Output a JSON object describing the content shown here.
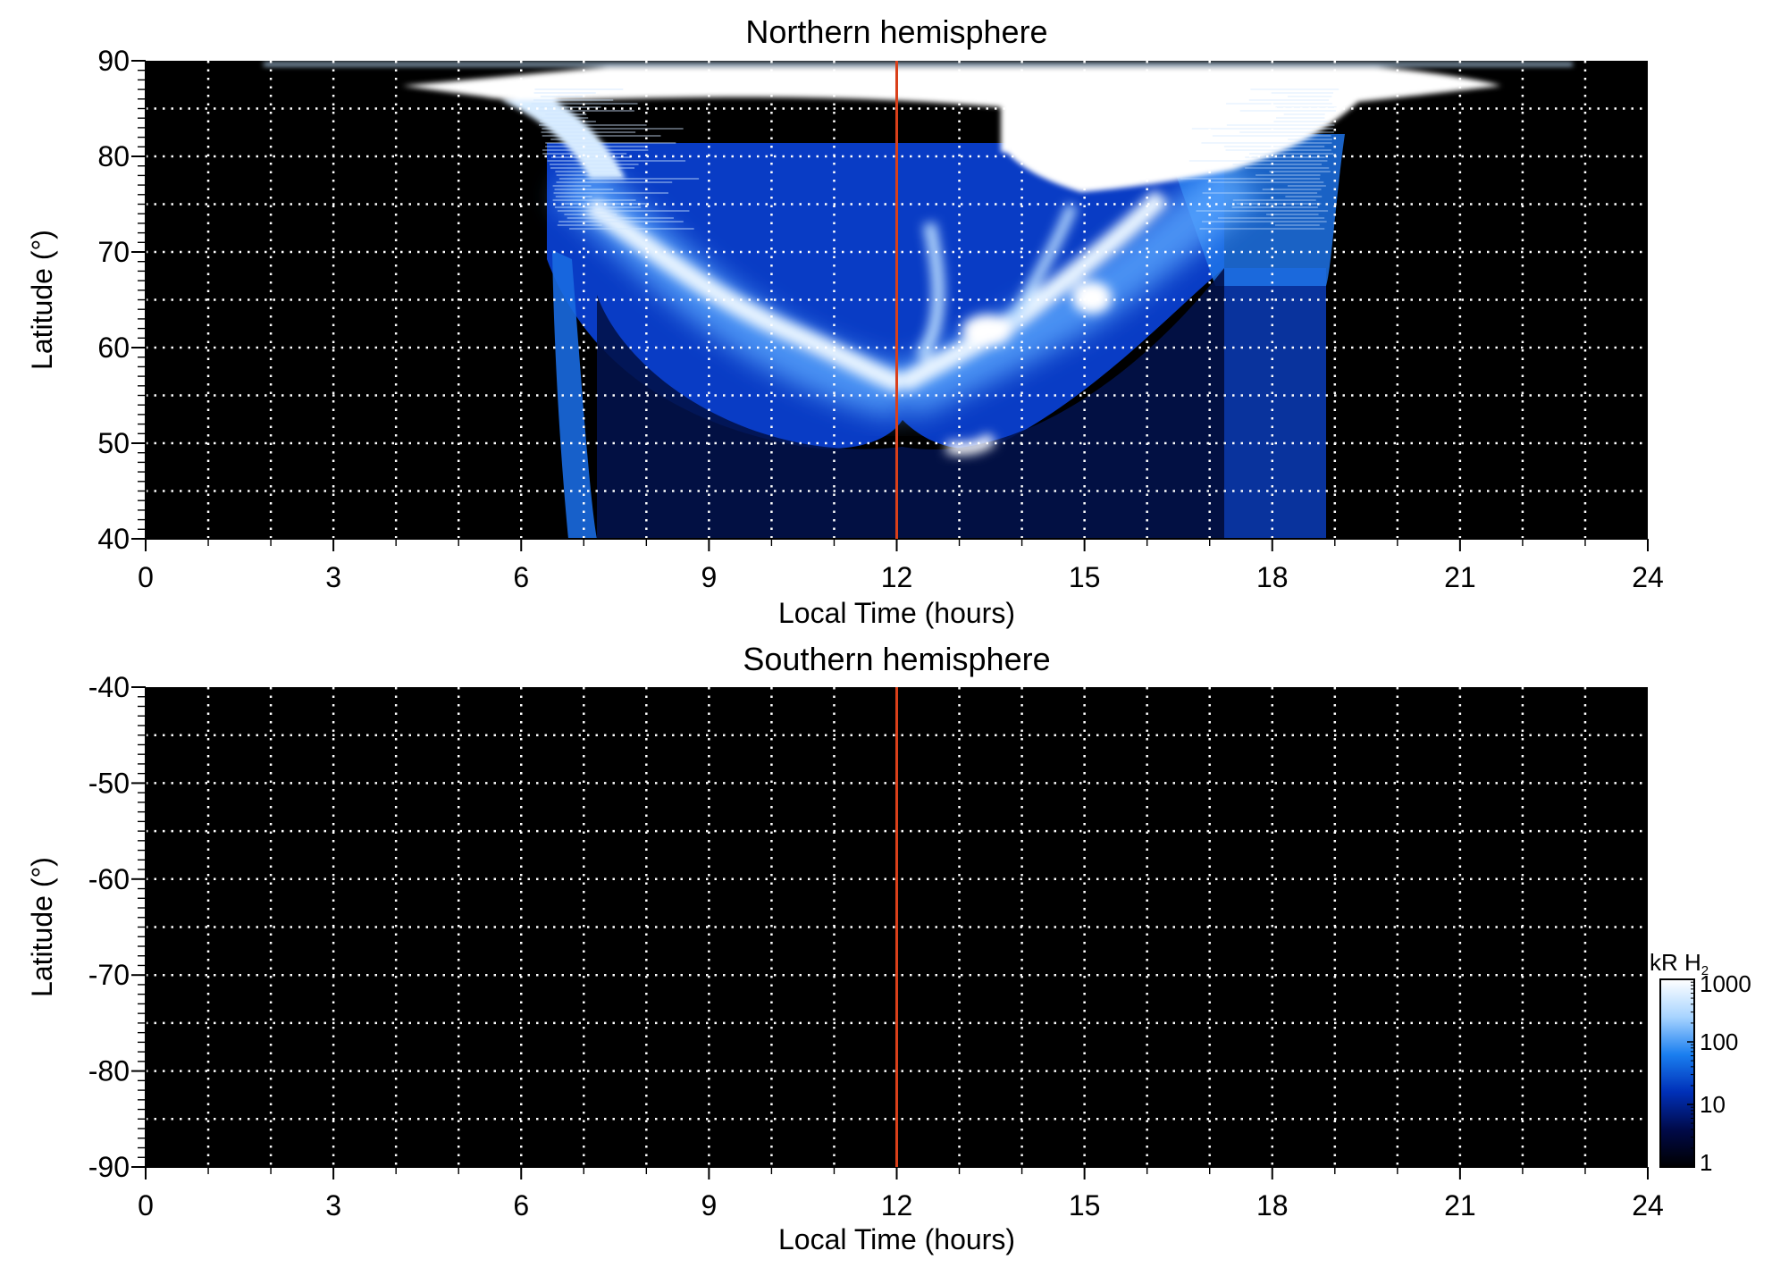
{
  "chart_data": [
    {
      "type": "heatmap",
      "title": "Northern hemisphere",
      "xlabel": "Local Time (hours)",
      "ylabel": "Latitude (°)",
      "xlim": [
        0,
        24
      ],
      "ylim": [
        40,
        90
      ],
      "x_ticks": [
        "0",
        "3",
        "6",
        "9",
        "12",
        "15",
        "18",
        "21",
        "24"
      ],
      "x_tick_values": [
        0,
        3,
        6,
        9,
        12,
        15,
        18,
        21,
        24
      ],
      "y_ticks": [
        "40",
        "50",
        "60",
        "70",
        "80",
        "90"
      ],
      "y_tick_values": [
        40,
        50,
        60,
        70,
        80,
        90
      ],
      "grid": true,
      "grid_x_step": 1,
      "grid_y_step": 5,
      "reference_line": {
        "x": 12,
        "color": "#d9401a"
      },
      "background_color": "#000000",
      "emission": {
        "description_units": "kR H2",
        "nightside_edges_hours": [
          6.6,
          19.0
        ],
        "polar_cap_latitude": 85,
        "noon_boundary_latitude": 51,
        "bright_spot": {
          "local_time": 12.8,
          "latitude": 48.5
        },
        "oval_features": [
          {
            "local_time": 8.0,
            "latitude": 71
          },
          {
            "local_time": 12.0,
            "latitude": 56
          },
          {
            "local_time": 13.8,
            "latitude": 61
          },
          {
            "local_time": 15.2,
            "latitude": 65
          },
          {
            "local_time": 16.5,
            "latitude": 72
          }
        ]
      }
    },
    {
      "type": "heatmap",
      "title": "Southern hemisphere",
      "xlabel": "Local Time (hours)",
      "ylabel": "Latitude (°)",
      "xlim": [
        0,
        24
      ],
      "ylim": [
        -90,
        -40
      ],
      "x_ticks": [
        "0",
        "3",
        "6",
        "9",
        "12",
        "15",
        "18",
        "21",
        "24"
      ],
      "x_tick_values": [
        0,
        3,
        6,
        9,
        12,
        15,
        18,
        21,
        24
      ],
      "y_ticks": [
        "-40",
        "-50",
        "-60",
        "-70",
        "-80",
        "-90"
      ],
      "y_tick_values": [
        -40,
        -50,
        -60,
        -70,
        -80,
        -90
      ],
      "grid": true,
      "grid_x_step": 1,
      "grid_y_step": 5,
      "reference_line": {
        "x": 12,
        "color": "#d9401a"
      },
      "background_color": "#000000"
    }
  ],
  "colorbar": {
    "label": "kR H",
    "label_subscript": "2",
    "scale": "log",
    "range": [
      1,
      1000
    ],
    "ticks": [
      "1000",
      "100",
      "10",
      "1"
    ],
    "tick_values": [
      1000,
      100,
      10,
      1
    ],
    "colors": [
      "#000000",
      "#000a4a",
      "#0030b8",
      "#1a7ff0",
      "#a8d4ff",
      "#ffffff"
    ]
  }
}
